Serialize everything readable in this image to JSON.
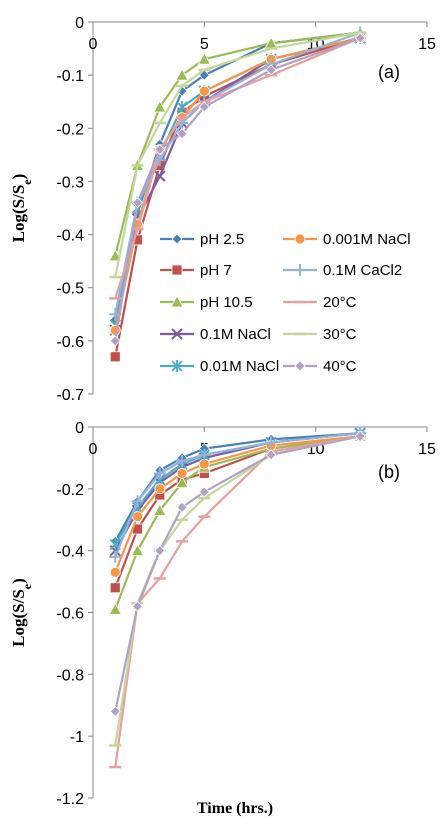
{
  "chart_data": [
    {
      "type": "line",
      "panel_label": "(a)",
      "ylabel_main": "Log(S/S",
      "ylabel_sub": "e",
      "ylabel_close": ")",
      "xlabel": "",
      "xlim": [
        0,
        15
      ],
      "ylim": [
        -0.7,
        0
      ],
      "x_ticks": [
        "0",
        "5",
        "10",
        "15"
      ],
      "y_ticks": [
        "0",
        "-0.1",
        "-0.2",
        "-0.3",
        "-0.4",
        "-0.5",
        "-0.6",
        "-0.7"
      ],
      "x": [
        1,
        2,
        3,
        4,
        5,
        8,
        12
      ],
      "legend": "inside-center",
      "grid": false,
      "series": [
        {
          "name": "pH 2.5",
          "color": "#4a7ebb",
          "marker": "diamond",
          "values": [
            -0.56,
            -0.36,
            -0.23,
            -0.13,
            -0.1,
            -0.04,
            -0.02
          ]
        },
        {
          "name": "pH 7",
          "color": "#c0504d",
          "marker": "square",
          "values": [
            -0.63,
            -0.41,
            -0.27,
            -0.17,
            -0.14,
            -0.08,
            -0.03
          ]
        },
        {
          "name": "pH 10.5",
          "color": "#9bbb59",
          "marker": "triangle",
          "values": [
            -0.44,
            -0.27,
            -0.16,
            -0.1,
            -0.07,
            -0.04,
            -0.02
          ]
        },
        {
          "name": "0.1M NaCl",
          "color": "#7d5b9e",
          "marker": "x",
          "values": [
            -0.58,
            -0.37,
            -0.29,
            -0.19,
            -0.15,
            -0.07,
            -0.03
          ]
        },
        {
          "name": "0.01M NaCl",
          "color": "#4bacc6",
          "marker": "asterisk",
          "values": [
            -0.57,
            -0.35,
            -0.25,
            -0.16,
            -0.13,
            -0.07,
            -0.03
          ]
        },
        {
          "name": "0.001M NaCl",
          "color": "#f79646",
          "marker": "circle",
          "values": [
            -0.58,
            -0.38,
            -0.24,
            -0.18,
            -0.13,
            -0.07,
            -0.03
          ]
        },
        {
          "name": "0.1M CaCl2",
          "color": "#95b3d7",
          "marker": "plus",
          "values": [
            -0.55,
            -0.34,
            -0.26,
            -0.19,
            -0.15,
            -0.08,
            -0.02
          ]
        },
        {
          "name": "20°C",
          "color": "#e6a0a0",
          "marker": "dash",
          "values": [
            -0.52,
            -0.39,
            -0.24,
            -0.18,
            -0.15,
            -0.1,
            -0.03
          ]
        },
        {
          "name": "30°C",
          "color": "#c4d79b",
          "marker": "dash",
          "values": [
            -0.48,
            -0.27,
            -0.19,
            -0.12,
            -0.09,
            -0.05,
            -0.02
          ]
        },
        {
          "name": "40°C",
          "color": "#b2a1c7",
          "marker": "diamond",
          "values": [
            -0.6,
            -0.34,
            -0.24,
            -0.21,
            -0.16,
            -0.09,
            -0.03
          ]
        }
      ]
    },
    {
      "type": "line",
      "panel_label": "(b)",
      "ylabel_main": "Log(S/S",
      "ylabel_sub": "e",
      "ylabel_close": ")",
      "xlabel": "Time (hrs.)",
      "xlim": [
        0,
        15
      ],
      "ylim": [
        -1.2,
        0
      ],
      "x_ticks": [
        "0",
        "5",
        "10",
        "15"
      ],
      "y_ticks": [
        "0",
        "-0.2",
        "-0.4",
        "-0.6",
        "-0.8",
        "-1",
        "-1.2"
      ],
      "x": [
        1,
        2,
        3,
        4,
        5,
        8,
        12
      ],
      "grid": false,
      "series": [
        {
          "name": "pH 2.5",
          "color": "#4a7ebb",
          "marker": "diamond",
          "values": [
            -0.37,
            -0.24,
            -0.14,
            -0.1,
            -0.07,
            -0.04,
            -0.02
          ]
        },
        {
          "name": "pH 7",
          "color": "#c0504d",
          "marker": "square",
          "values": [
            -0.52,
            -0.33,
            -0.22,
            -0.17,
            -0.15,
            -0.07,
            -0.03
          ]
        },
        {
          "name": "pH 10.5",
          "color": "#9bbb59",
          "marker": "triangle",
          "values": [
            -0.59,
            -0.4,
            -0.27,
            -0.18,
            -0.13,
            -0.07,
            -0.03
          ]
        },
        {
          "name": "0.1M NaCl",
          "color": "#7d5b9e",
          "marker": "x",
          "values": [
            -0.4,
            -0.27,
            -0.18,
            -0.13,
            -0.1,
            -0.05,
            -0.02
          ]
        },
        {
          "name": "0.01M NaCl",
          "color": "#4bacc6",
          "marker": "asterisk",
          "values": [
            -0.38,
            -0.26,
            -0.17,
            -0.12,
            -0.09,
            -0.05,
            -0.02
          ]
        },
        {
          "name": "0.001M NaCl",
          "color": "#f79646",
          "marker": "circle",
          "values": [
            -0.47,
            -0.29,
            -0.2,
            -0.15,
            -0.12,
            -0.06,
            -0.03
          ]
        },
        {
          "name": "0.1M CaCl2",
          "color": "#95b3d7",
          "marker": "plus",
          "values": [
            -0.42,
            -0.24,
            -0.15,
            -0.11,
            -0.09,
            -0.05,
            -0.02
          ]
        },
        {
          "name": "20°C",
          "color": "#e6a0a0",
          "marker": "dash",
          "values": [
            -1.1,
            -0.57,
            -0.49,
            -0.37,
            -0.29,
            -0.08,
            -0.03
          ]
        },
        {
          "name": "30°C",
          "color": "#c4d79b",
          "marker": "dash",
          "values": [
            -1.03,
            -0.57,
            -0.4,
            -0.3,
            -0.23,
            -0.09,
            -0.03
          ]
        },
        {
          "name": "40°C",
          "color": "#b2a1c7",
          "marker": "diamond",
          "values": [
            -0.92,
            -0.58,
            -0.4,
            -0.26,
            -0.21,
            -0.09,
            -0.03
          ]
        }
      ]
    }
  ]
}
